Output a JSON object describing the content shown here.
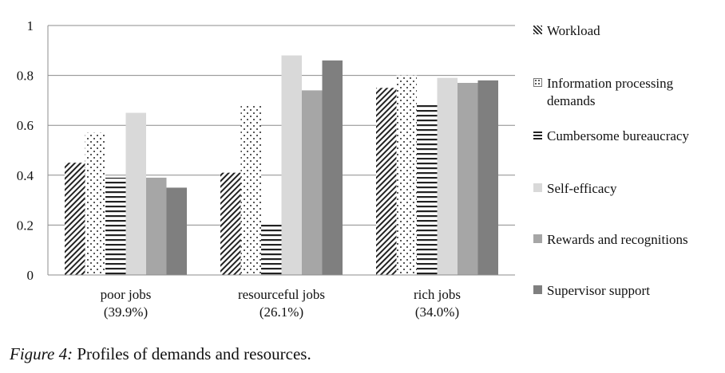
{
  "chart_data": {
    "type": "bar",
    "categories": [
      [
        "poor jobs",
        "(39.9%)"
      ],
      [
        "resourceful jobs",
        "(26.1%)"
      ],
      [
        "rich jobs",
        "(34.0%)"
      ]
    ],
    "series": [
      {
        "name": "Workload",
        "values": [
          0.45,
          0.41,
          0.75
        ],
        "pattern": "diagonal-hatch"
      },
      {
        "name": "Information processing demands",
        "values": [
          0.57,
          0.68,
          0.8
        ],
        "pattern": "dots"
      },
      {
        "name": "Cumbersome bureaucracy",
        "values": [
          0.39,
          0.21,
          0.69
        ],
        "pattern": "horizontal-stripes"
      },
      {
        "name": "Self-efficacy",
        "values": [
          0.65,
          0.88,
          0.79
        ],
        "pattern": "solid",
        "color": "#d9d9d9"
      },
      {
        "name": "Rewards and recognitions",
        "values": [
          0.39,
          0.74,
          0.77
        ],
        "pattern": "solid",
        "color": "#a6a6a6"
      },
      {
        "name": "Supervisor support",
        "values": [
          0.35,
          0.86,
          0.78
        ],
        "pattern": "solid",
        "color": "#7f7f7f"
      }
    ],
    "yticks": [
      "0",
      "0.2",
      "0.4",
      "0.6",
      "0.8",
      "1"
    ],
    "ylim": [
      0,
      1
    ],
    "grid": true,
    "legend_position": "right"
  },
  "caption": {
    "label": "Figure 4:",
    "text": " Profiles of demands and resources."
  }
}
